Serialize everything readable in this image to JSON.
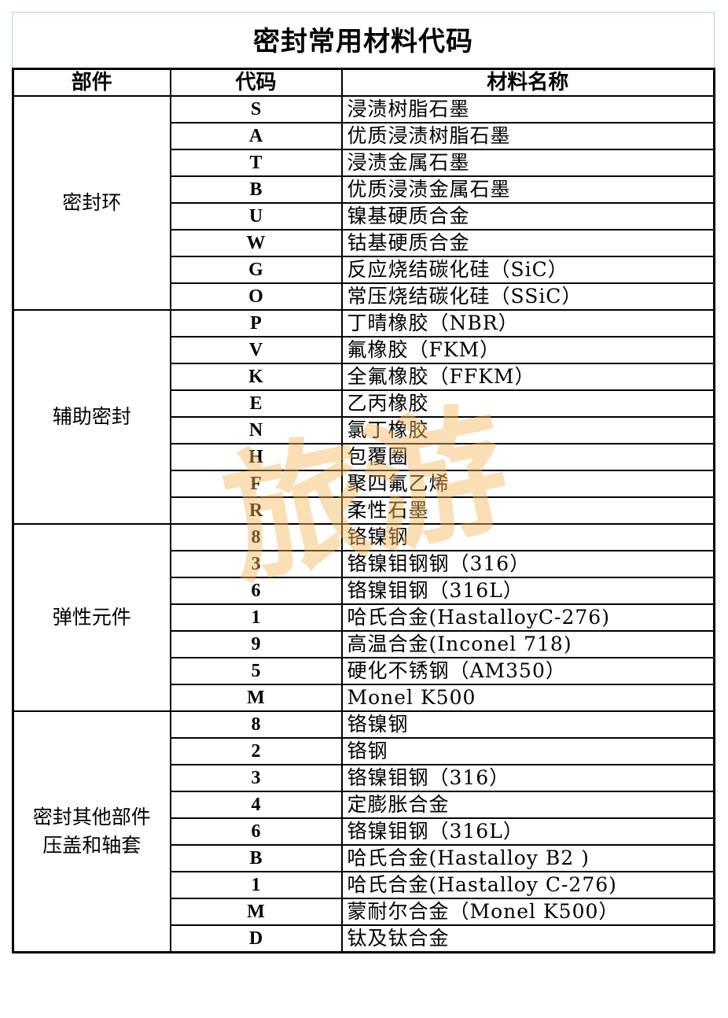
{
  "title": "密封常用材料代码",
  "headers": {
    "part": "部件",
    "code": "代码",
    "name": "材料名称"
  },
  "groups": [
    {
      "part": [
        "密封环"
      ],
      "rows": [
        {
          "code": "S",
          "name": "浸渍树脂石墨"
        },
        {
          "code": "A",
          "name": "优质浸渍树脂石墨"
        },
        {
          "code": "T",
          "name": "浸渍金属石墨"
        },
        {
          "code": "B",
          "name": "优质浸渍金属石墨"
        },
        {
          "code": "U",
          "name": "镍基硬质合金"
        },
        {
          "code": "W",
          "name": "钴基硬质合金"
        },
        {
          "code": "G",
          "name": "反应烧结碳化硅（SiC）"
        },
        {
          "code": "O",
          "name": "常压烧结碳化硅（SSiC）"
        }
      ]
    },
    {
      "part": [
        "辅助密封"
      ],
      "rows": [
        {
          "code": "P",
          "name": "丁晴橡胶（NBR）"
        },
        {
          "code": "V",
          "name": "氟橡胶（FKM）"
        },
        {
          "code": "K",
          "name": "全氟橡胶（FFKM）"
        },
        {
          "code": "E",
          "name": "乙丙橡胶"
        },
        {
          "code": "N",
          "name": "氯丁橡胶"
        },
        {
          "code": "H",
          "name": "包覆圈"
        },
        {
          "code": "F",
          "name": "聚四氟乙烯"
        },
        {
          "code": "R",
          "name": "柔性石墨"
        }
      ]
    },
    {
      "part": [
        "弹性元件"
      ],
      "rows": [
        {
          "code": "8",
          "name": "铬镍钢"
        },
        {
          "code": "3",
          "name": "铬镍钼钢钢（316）"
        },
        {
          "code": "6",
          "name": "铬镍钼钢（316L）"
        },
        {
          "code": "1",
          "name": "哈氏合金(HastalloyC-276)"
        },
        {
          "code": "9",
          "name": "高温合金(Inconel 718)"
        },
        {
          "code": "5",
          "name": "硬化不锈钢（AM350）"
        },
        {
          "code": "M",
          "name": "Monel K500"
        }
      ]
    },
    {
      "part": [
        "密封其他部件",
        "压盖和轴套"
      ],
      "rows": [
        {
          "code": "8",
          "name": "铬镍钢"
        },
        {
          "code": "2",
          "name": "铬钢"
        },
        {
          "code": "3",
          "name": "铬镍钼钢（316）"
        },
        {
          "code": "4",
          "name": "定膨胀合金"
        },
        {
          "code": "6",
          "name": "铬镍钼钢（316L）"
        },
        {
          "code": "B",
          "name": "哈氏合金(Hastalloy B2 )"
        },
        {
          "code": "1",
          "name": "哈氏合金(Hastalloy C-276)"
        },
        {
          "code": "M",
          "name": "蒙耐尔合金（Monel K500）"
        },
        {
          "code": "D",
          "name": "钛及钛合金"
        }
      ]
    }
  ],
  "watermark": "旅游",
  "colors": {
    "watermark": "#f4b860",
    "title_border": "#b9d8c0"
  }
}
